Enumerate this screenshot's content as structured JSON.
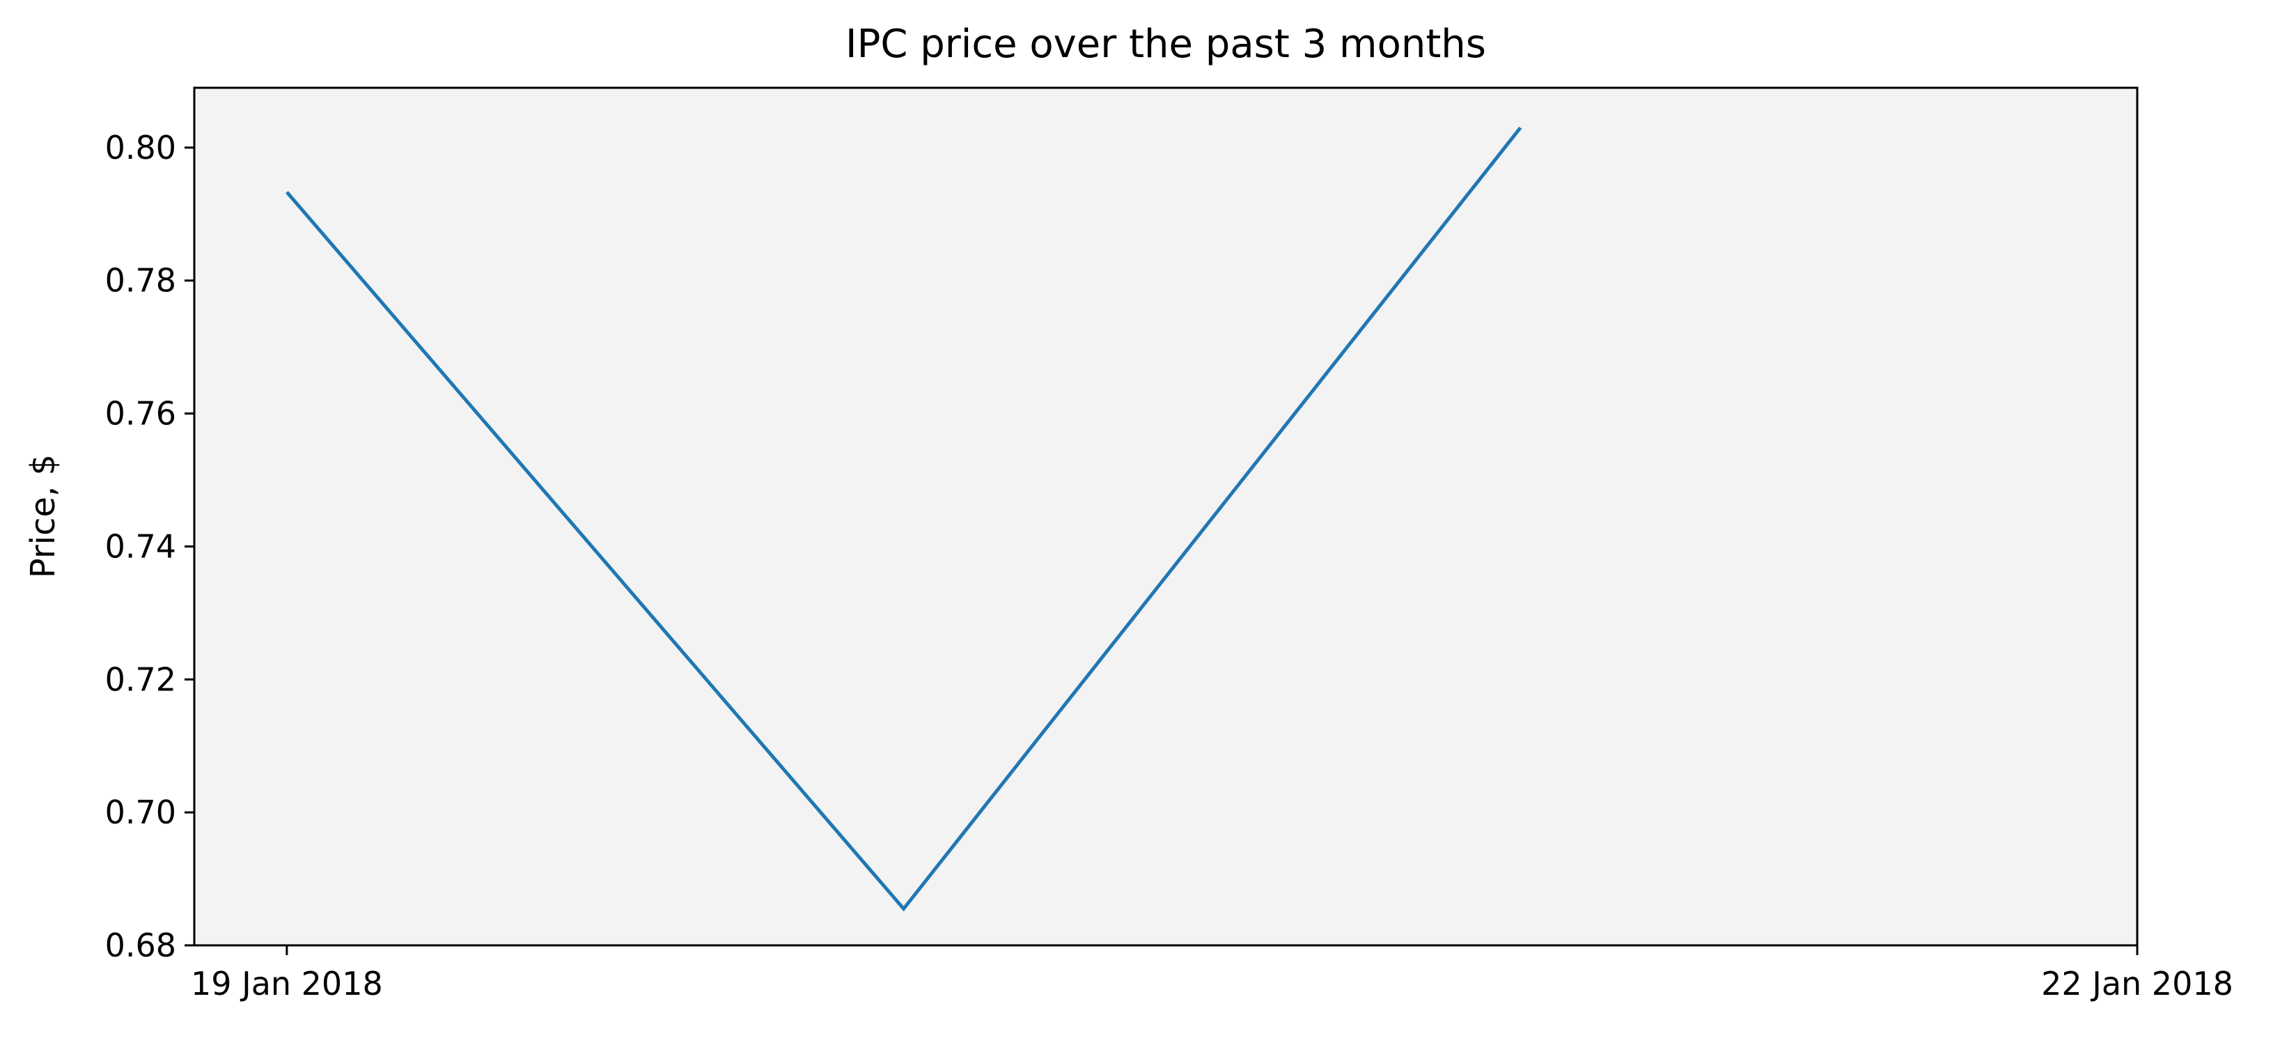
{
  "chart_data": {
    "type": "line",
    "title": "IPC price over the past 3 months",
    "xlabel": "",
    "ylabel": "Price, $",
    "x": [
      "2018-01-19",
      "2018-01-20",
      "2018-01-21"
    ],
    "x_tick_values": [
      "2018-01-19",
      "2018-01-22"
    ],
    "x_tick_labels": [
      "19 Jan 2018",
      "22 Jan 2018"
    ],
    "xlim": [
      "2018-01-18T20:24",
      "2018-01-22T00:00"
    ],
    "series": [
      {
        "values": [
          0.7933,
          0.6855,
          0.803
        ],
        "color": "#1f77b4"
      }
    ],
    "ylim": [
      0.68,
      0.809
    ],
    "y_ticks": [
      0.68,
      0.7,
      0.72,
      0.74,
      0.76,
      0.78,
      0.8
    ],
    "y_tick_labels": [
      "0.68",
      "0.70",
      "0.72",
      "0.74",
      "0.76",
      "0.78",
      "0.80"
    ],
    "plot_background": "#f3f3f3",
    "grid": false,
    "legend": "none"
  }
}
